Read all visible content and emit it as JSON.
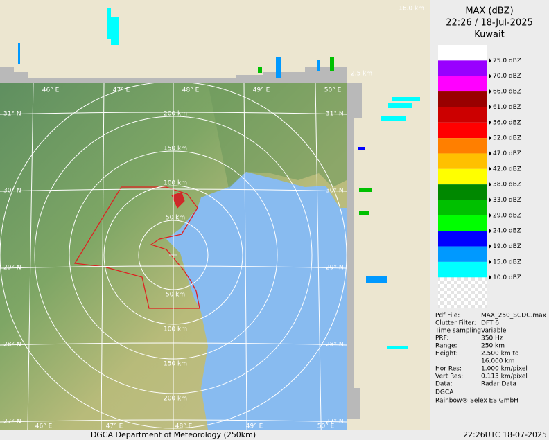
{
  "header": {
    "product": "MAX (dBZ)",
    "time": "22:26 / 18-Jul-2025",
    "location": "Kuwait"
  },
  "profile_labels": {
    "top": "16.0 km",
    "bottom": "2.5 km"
  },
  "legend": [
    {
      "label": "75.0 dBZ",
      "color": "#ffffff"
    },
    {
      "label": "70.0 dBZ",
      "color": "#9900ff"
    },
    {
      "label": "66.0 dBZ",
      "color": "#ff00ff"
    },
    {
      "label": "61.0 dBZ",
      "color": "#990000"
    },
    {
      "label": "56.0 dBZ",
      "color": "#cc0000"
    },
    {
      "label": "52.0 dBZ",
      "color": "#ff0000"
    },
    {
      "label": "47.0 dBZ",
      "color": "#ff7f00"
    },
    {
      "label": "42.0 dBZ",
      "color": "#ffc000"
    },
    {
      "label": "38.0 dBZ",
      "color": "#ffff00"
    },
    {
      "label": "33.0 dBZ",
      "color": "#008800"
    },
    {
      "label": "29.0 dBZ",
      "color": "#00c000"
    },
    {
      "label": "24.0 dBZ",
      "color": "#00ff00"
    },
    {
      "label": "19.0 dBZ",
      "color": "#0000ff"
    },
    {
      "label": "15.0 dBZ",
      "color": "#0099ff"
    },
    {
      "label": "10.0 dBZ",
      "color": "#00ffff"
    }
  ],
  "info": [
    [
      "Pdf File:",
      "MAX_250_SCDC.max"
    ],
    [
      "Clutter Filter:",
      "DFT 6"
    ],
    [
      "Time sampling:",
      "Variable"
    ],
    [
      "PRF:",
      "350 Hz"
    ],
    [
      "Range:",
      "250 km"
    ],
    [
      "Height:",
      "2.500 km to"
    ],
    [
      "",
      "16.000 km"
    ],
    [
      "Hor Res:",
      "1.000 km/pixel"
    ],
    [
      "Vert Res:",
      "0.113 km/pixel"
    ],
    [
      "Data:",
      "Radar Data"
    ]
  ],
  "credits": [
    "DGCA",
    "Rainbow® Selex ES GmbH"
  ],
  "map": {
    "longitudes": [
      "46° E",
      "47° E",
      "48° E",
      "49° E",
      "50° E"
    ],
    "latitudes": [
      "31° N",
      "30° N",
      "29° N",
      "28° N",
      "27° N"
    ],
    "ranges_north": [
      "50 km",
      "100 km",
      "150 km",
      "200 km"
    ],
    "ranges_south": [
      "50 km",
      "100 km",
      "150 km",
      "200 km"
    ]
  },
  "footer": {
    "left": "DGCA Department of Meteorology (250km)",
    "right": "22:26UTC 18-07-2025"
  }
}
